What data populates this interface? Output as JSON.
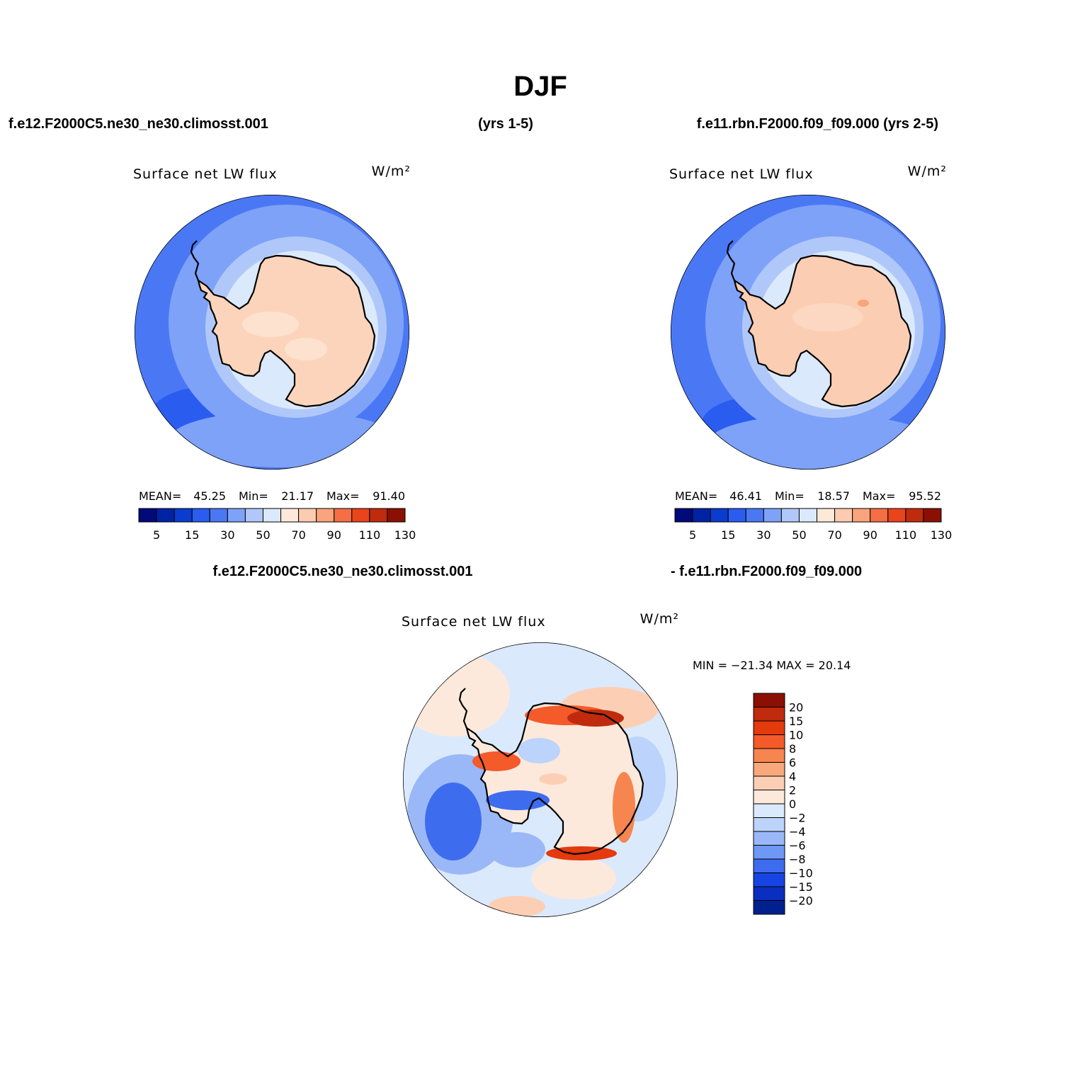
{
  "page": {
    "title": "DJF",
    "left_case": "f.e12.F2000C5.ne30_ne30.climosst.001",
    "left_years": "(yrs 1-5)",
    "right_case": "f.e11.rbn.F2000.f09_f09.000 (yrs 2-5)",
    "diff_case_a": "f.e12.F2000C5.ne30_ne30.climosst.001",
    "diff_case_b": "- f.e11.rbn.F2000.f09_f09.000"
  },
  "colors": {
    "abs_scale": [
      "#000a78",
      "#0023a5",
      "#0a3ccd",
      "#2a5cf0",
      "#4a78f5",
      "#7ea2f8",
      "#b0c8f9",
      "#dbe9fd",
      "#fde9d9",
      "#fccbb0",
      "#f9a47c",
      "#f56e44",
      "#e9441c",
      "#bf2b0c",
      "#8c0f04"
    ],
    "diff_scale": [
      "#8c0f04",
      "#bf2b0c",
      "#e33a0e",
      "#f45a2a",
      "#f68550",
      "#f9a87c",
      "#fccfb5",
      "#fde9db",
      "#dbe9fd",
      "#bcd3fb",
      "#9ab8f8",
      "#6e98f4",
      "#3e6cee",
      "#1745e4",
      "#0a2ec0",
      "#002090"
    ],
    "ocean_land_fill": "#fbd2b8"
  },
  "chart_data": [
    {
      "type": "heatmap",
      "projection": "south polar stereographic",
      "title": "Surface net LW flux",
      "units": "W/m²",
      "stats": {
        "mean_label": "MEAN=",
        "mean": "45.25",
        "min_label": "Min=",
        "min": "21.17",
        "max_label": "Max=",
        "max": "91.40"
      },
      "levels": [
        5,
        10,
        15,
        20,
        30,
        40,
        50,
        60,
        70,
        80,
        90,
        100,
        110,
        120,
        130
      ],
      "tick_labels": [
        "5",
        "15",
        "30",
        "50",
        "70",
        "90",
        "110",
        "130"
      ]
    },
    {
      "type": "heatmap",
      "projection": "south polar stereographic",
      "title": "Surface net LW flux",
      "units": "W/m²",
      "stats": {
        "mean_label": "MEAN=",
        "mean": "46.41",
        "min_label": "Min=",
        "min": "18.57",
        "max_label": "Max=",
        "max": "95.52"
      },
      "levels": [
        5,
        10,
        15,
        20,
        30,
        40,
        50,
        60,
        70,
        80,
        90,
        100,
        110,
        120,
        130
      ],
      "tick_labels": [
        "5",
        "15",
        "30",
        "50",
        "70",
        "90",
        "110",
        "130"
      ]
    },
    {
      "type": "heatmap",
      "projection": "south polar stereographic",
      "title": "Surface net LW flux",
      "units": "W/m²",
      "stats_text": "MIN = −21.34 MAX =  20.14",
      "levels": [
        20,
        15,
        10,
        8,
        6,
        4,
        2,
        0,
        -2,
        -4,
        -6,
        -8,
        -10,
        -15,
        -20
      ],
      "tick_labels": [
        "20",
        "15",
        "10",
        "8",
        "6",
        "4",
        "2",
        "0",
        "−2",
        "−4",
        "−6",
        "−8",
        "−10",
        "−15",
        "−20"
      ]
    }
  ]
}
